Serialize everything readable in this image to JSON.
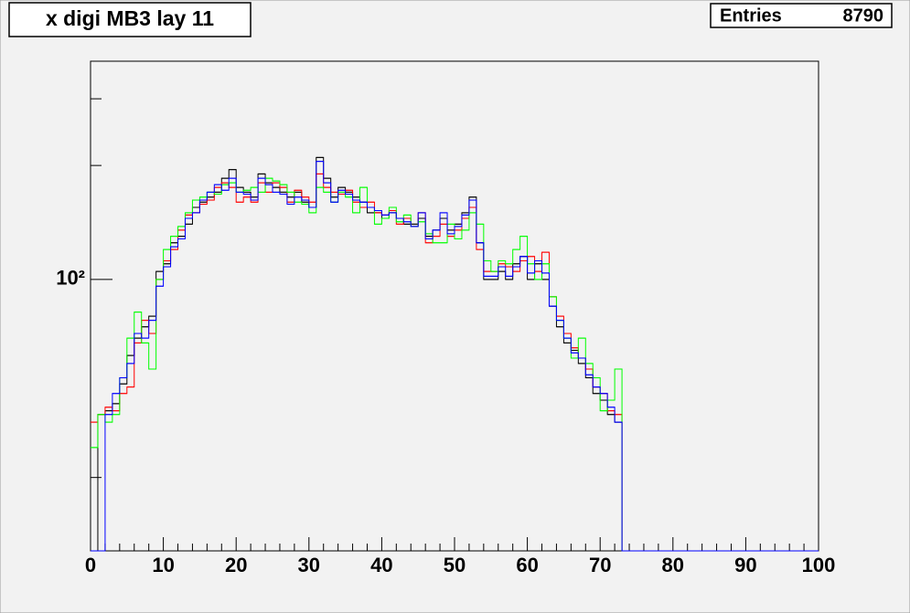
{
  "chart_data": {
    "type": "histogram",
    "title": "x digi MB3 lay 11",
    "stats": {
      "label": "Entries",
      "value": 8790
    },
    "bins": [
      0,
      1,
      2,
      3,
      4,
      5,
      6,
      7,
      8,
      9,
      10,
      11,
      12,
      13,
      14,
      15,
      16,
      17,
      18,
      19,
      20,
      21,
      22,
      23,
      24,
      25,
      26,
      27,
      28,
      29,
      30,
      31,
      32,
      33,
      34,
      35,
      36,
      37,
      38,
      39,
      40,
      41,
      42,
      43,
      44,
      45,
      46,
      47,
      48,
      49,
      50,
      51,
      52,
      53,
      54,
      55,
      56,
      57,
      58,
      59,
      60,
      61,
      62,
      63,
      64,
      65,
      66,
      67,
      68,
      69,
      70,
      71,
      72,
      73,
      74,
      75,
      76,
      77,
      78,
      79,
      80,
      81,
      82,
      83,
      84,
      85,
      86,
      87,
      88,
      89,
      90,
      91,
      92,
      93,
      94,
      95,
      96,
      97,
      98,
      99,
      100
    ],
    "series": [
      {
        "color": "#000000",
        "values": [
          0,
          44,
          45,
          47,
          53,
          63,
          70,
          75,
          80,
          105,
          110,
          125,
          130,
          140,
          155,
          160,
          165,
          170,
          185,
          195,
          175,
          170,
          165,
          190,
          180,
          175,
          170,
          165,
          170,
          160,
          155,
          210,
          185,
          165,
          175,
          170,
          165,
          160,
          150,
          150,
          145,
          150,
          145,
          140,
          140,
          145,
          130,
          135,
          145,
          135,
          140,
          150,
          165,
          125,
          100,
          100,
          105,
          100,
          110,
          115,
          100,
          110,
          100,
          85,
          75,
          68,
          65,
          60,
          55,
          50,
          48,
          44,
          42,
          0,
          0,
          0,
          0,
          0,
          0,
          0,
          0,
          0,
          0,
          0,
          0,
          0,
          0,
          0,
          0,
          0,
          0,
          0,
          0,
          0,
          0,
          0,
          0,
          0,
          0,
          0
        ]
      },
      {
        "color": "#ff0000",
        "values": [
          42,
          44,
          46,
          45,
          50,
          52,
          68,
          78,
          72,
          100,
          112,
          120,
          135,
          148,
          150,
          158,
          162,
          175,
          180,
          175,
          160,
          165,
          160,
          180,
          170,
          180,
          175,
          160,
          172,
          165,
          160,
          190,
          175,
          170,
          168,
          172,
          160,
          155,
          160,
          150,
          148,
          152,
          140,
          145,
          138,
          150,
          125,
          130,
          140,
          130,
          135,
          145,
          155,
          120,
          105,
          105,
          110,
          108,
          105,
          112,
          115,
          105,
          118,
          90,
          80,
          72,
          66,
          62,
          58,
          52,
          50,
          45,
          44,
          0,
          0,
          0,
          0,
          0,
          0,
          0,
          0,
          0,
          0,
          0,
          0,
          0,
          0,
          0,
          0,
          0,
          0,
          0,
          0,
          0,
          0,
          0,
          0,
          0,
          0,
          0
        ]
      },
      {
        "color": "#00ff00",
        "values": [
          36,
          44,
          42,
          44,
          55,
          70,
          82,
          68,
          58,
          100,
          120,
          130,
          138,
          150,
          162,
          165,
          170,
          168,
          178,
          180,
          170,
          172,
          175,
          170,
          185,
          182,
          178,
          170,
          160,
          158,
          150,
          175,
          170,
          160,
          170,
          165,
          150,
          175,
          155,
          140,
          145,
          155,
          142,
          148,
          138,
          142,
          132,
          125,
          125,
          140,
          128,
          135,
          150,
          140,
          112,
          105,
          112,
          110,
          120,
          130,
          110,
          100,
          110,
          90,
          78,
          70,
          62,
          70,
          60,
          55,
          45,
          48,
          58,
          0,
          0,
          0,
          0,
          0,
          0,
          0,
          0,
          0,
          0,
          0,
          0,
          0,
          0,
          0,
          0,
          0,
          0,
          0,
          0,
          0,
          0,
          0,
          0,
          0,
          0,
          0
        ]
      },
      {
        "color": "#0000ff",
        "values": [
          0,
          0,
          44,
          50,
          55,
          60,
          72,
          70,
          78,
          96,
          108,
          122,
          128,
          145,
          150,
          162,
          170,
          178,
          172,
          185,
          170,
          168,
          162,
          185,
          178,
          170,
          168,
          158,
          165,
          162,
          155,
          205,
          180,
          160,
          172,
          168,
          162,
          160,
          155,
          152,
          148,
          150,
          145,
          142,
          138,
          150,
          128,
          135,
          150,
          132,
          138,
          148,
          162,
          125,
          102,
          102,
          108,
          102,
          108,
          115,
          104,
          112,
          104,
          85,
          78,
          70,
          64,
          62,
          56,
          52,
          50,
          46,
          42,
          0,
          0,
          0,
          0,
          0,
          0,
          0,
          0,
          0,
          0,
          0,
          0,
          0,
          0,
          0,
          0,
          0,
          0,
          0,
          0,
          0,
          0,
          0,
          0,
          0,
          0,
          0
        ]
      }
    ],
    "xlim": [
      0,
      100
    ],
    "xticks": [
      0,
      10,
      20,
      30,
      40,
      50,
      60,
      70,
      80,
      90,
      100
    ],
    "xminor_ticks": [
      2,
      4,
      6,
      8,
      12,
      14,
      16,
      18,
      22,
      24,
      26,
      28,
      32,
      34,
      36,
      38,
      42,
      44,
      46,
      48,
      52,
      54,
      56,
      58,
      62,
      64,
      66,
      68,
      72,
      74,
      76,
      78,
      82,
      84,
      86,
      88,
      92,
      94,
      96,
      98
    ],
    "ylim": [
      19.2,
      377
    ],
    "log_y": true,
    "yticks": [
      {
        "value": 100,
        "label": "10²"
      }
    ],
    "yminor_ticks": [
      30,
      200,
      300
    ]
  }
}
